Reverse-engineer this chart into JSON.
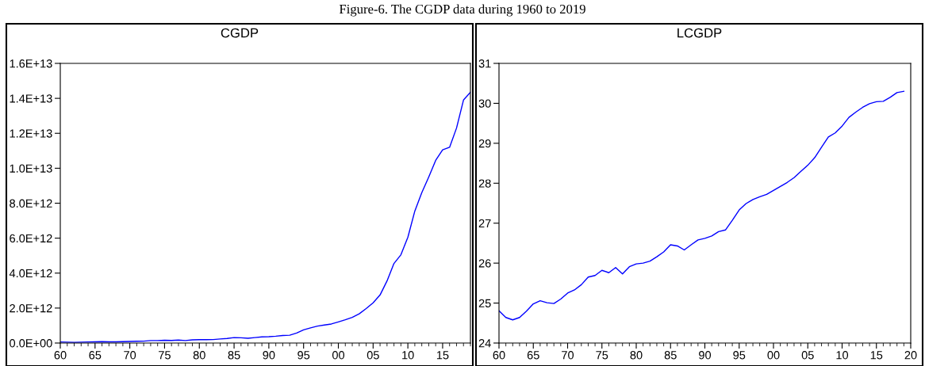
{
  "chart_data": [
    {
      "type": "line",
      "title": "CGDP",
      "annotations": [
        "Figure-6. The CGDP data during 1960 to 2019"
      ],
      "x": [
        1960,
        1961,
        1962,
        1963,
        1964,
        1965,
        1966,
        1967,
        1968,
        1969,
        1970,
        1971,
        1972,
        1973,
        1974,
        1975,
        1976,
        1977,
        1978,
        1979,
        1980,
        1981,
        1982,
        1983,
        1984,
        1985,
        1986,
        1987,
        1988,
        1989,
        1990,
        1991,
        1992,
        1993,
        1994,
        1995,
        1996,
        1997,
        1998,
        1999,
        2000,
        2001,
        2002,
        2003,
        2004,
        2005,
        2006,
        2007,
        2008,
        2009,
        2010,
        2011,
        2012,
        2013,
        2014,
        2015,
        2016,
        2017,
        2018,
        2019
      ],
      "series": [
        {
          "color": "#0000ff",
          "values": [
            60000000000.0,
            50000000000.0,
            40000000000.0,
            50000000000.0,
            60000000000.0,
            70000000000.0,
            80000000000.0,
            70000000000.0,
            70000000000.0,
            80000000000.0,
            90000000000.0,
            100000000000.0,
            110000000000.0,
            140000000000.0,
            140000000000.0,
            160000000000.0,
            150000000000.0,
            170000000000.0,
            140000000000.0,
            180000000000.0,
            190000000000.0,
            190000000000.0,
            200000000000.0,
            230000000000.0,
            260000000000.0,
            310000000000.0,
            300000000000.0,
            270000000000.0,
            310000000000.0,
            350000000000.0,
            360000000000.0,
            390000000000.0,
            430000000000.0,
            450000000000.0,
            570000000000.0,
            750000000000.0,
            870000000000.0,
            970000000000.0,
            1030000000000.0,
            1090000000000.0,
            1210000000000.0,
            1330000000000.0,
            1470000000000.0,
            1670000000000.0,
            1970000000000.0,
            2300000000000.0,
            2750000000000.0,
            3550000000000.0,
            4550000000000.0,
            5050000000000.0,
            6050000000000.0,
            7550000000000.0,
            8600000000000.0,
            9500000000000.0,
            10450000000000.0,
            11050000000000.0,
            11200000000000.0,
            12300000000000.0,
            13900000000000.0,
            14350000000000.0
          ]
        }
      ],
      "xlim": [
        1960,
        2019
      ],
      "xticks": [
        {
          "value": 1960,
          "label": "60"
        },
        {
          "value": 1965,
          "label": "65"
        },
        {
          "value": 1970,
          "label": "70"
        },
        {
          "value": 1975,
          "label": "75"
        },
        {
          "value": 1980,
          "label": "80"
        },
        {
          "value": 1985,
          "label": "85"
        },
        {
          "value": 1990,
          "label": "90"
        },
        {
          "value": 1995,
          "label": "95"
        },
        {
          "value": 2000,
          "label": "00"
        },
        {
          "value": 2005,
          "label": "05"
        },
        {
          "value": 2010,
          "label": "10"
        },
        {
          "value": 2015,
          "label": "15"
        }
      ],
      "ylim": [
        0,
        16000000000000.0
      ],
      "yticks": [
        {
          "value": 0,
          "label": "0.0E+00"
        },
        {
          "value": 2000000000000.0,
          "label": "2.0E+12"
        },
        {
          "value": 4000000000000.0,
          "label": "4.0E+12"
        },
        {
          "value": 6000000000000.0,
          "label": "6.0E+12"
        },
        {
          "value": 8000000000000.0,
          "label": "8.0E+12"
        },
        {
          "value": 10000000000000.0,
          "label": "1.0E+13"
        },
        {
          "value": 12000000000000.0,
          "label": "1.2E+13"
        },
        {
          "value": 14000000000000.0,
          "label": "1.4E+13"
        },
        {
          "value": 16000000000000.0,
          "label": "1.6E+13"
        }
      ],
      "grid": false,
      "legend": false
    },
    {
      "type": "line",
      "title": "LCGDP",
      "x": [
        1960,
        1961,
        1962,
        1963,
        1964,
        1965,
        1966,
        1967,
        1968,
        1969,
        1970,
        1971,
        1972,
        1973,
        1974,
        1975,
        1976,
        1977,
        1978,
        1979,
        1980,
        1981,
        1982,
        1983,
        1984,
        1985,
        1986,
        1987,
        1988,
        1989,
        1990,
        1991,
        1992,
        1993,
        1994,
        1995,
        1996,
        1997,
        1998,
        1999,
        2000,
        2001,
        2002,
        2003,
        2004,
        2005,
        2006,
        2007,
        2008,
        2009,
        2010,
        2011,
        2012,
        2013,
        2014,
        2015,
        2016,
        2017,
        2018,
        2019
      ],
      "series": [
        {
          "color": "#0000ff",
          "values": [
            24.81,
            24.64,
            24.58,
            24.64,
            24.8,
            24.98,
            25.06,
            25.01,
            24.99,
            25.1,
            25.25,
            25.33,
            25.46,
            25.65,
            25.69,
            25.82,
            25.76,
            25.89,
            25.73,
            25.91,
            25.98,
            26.0,
            26.05,
            26.16,
            26.28,
            26.46,
            26.43,
            26.33,
            26.46,
            26.58,
            26.62,
            26.68,
            26.79,
            26.83,
            27.07,
            27.33,
            27.49,
            27.59,
            27.66,
            27.72,
            27.82,
            27.92,
            28.02,
            28.14,
            28.3,
            28.45,
            28.64,
            28.9,
            29.16,
            29.26,
            29.43,
            29.65,
            29.78,
            29.9,
            29.99,
            30.04,
            30.05,
            30.15,
            30.27,
            30.3
          ]
        }
      ],
      "xlim": [
        1960,
        2020
      ],
      "xticks": [
        {
          "value": 1960,
          "label": "60"
        },
        {
          "value": 1965,
          "label": "65"
        },
        {
          "value": 1970,
          "label": "70"
        },
        {
          "value": 1975,
          "label": "75"
        },
        {
          "value": 1980,
          "label": "80"
        },
        {
          "value": 1985,
          "label": "85"
        },
        {
          "value": 1990,
          "label": "90"
        },
        {
          "value": 1995,
          "label": "95"
        },
        {
          "value": 2000,
          "label": "00"
        },
        {
          "value": 2005,
          "label": "05"
        },
        {
          "value": 2010,
          "label": "10"
        },
        {
          "value": 2015,
          "label": "15"
        },
        {
          "value": 2020,
          "label": "20"
        }
      ],
      "ylim": [
        24,
        31
      ],
      "yticks": [
        24,
        25,
        26,
        27,
        28,
        29,
        30,
        31
      ],
      "grid": false,
      "legend": false
    }
  ]
}
